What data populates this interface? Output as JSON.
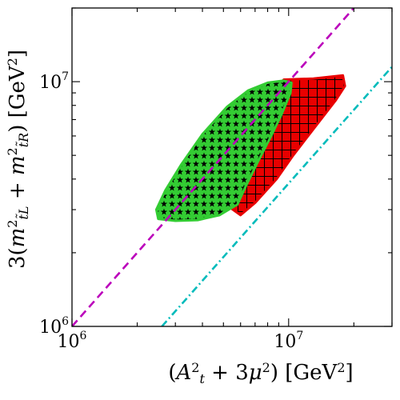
{
  "chart_data": {
    "type": "scatter",
    "title": "",
    "xlabel": {
      "parts": [
        {
          "t": "(",
          "s": "n"
        },
        {
          "t": "A",
          "s": "i"
        },
        {
          "t": "2",
          "s": "sup"
        },
        {
          "t": "t",
          "s": "sub"
        },
        {
          "t": " + 3",
          "s": "n"
        },
        {
          "t": "μ",
          "s": "i"
        },
        {
          "t": "2",
          "s": "sup"
        },
        {
          "t": ") [GeV",
          "s": "n"
        },
        {
          "t": "2",
          "s": "sup"
        },
        {
          "t": "]",
          "s": "n"
        }
      ]
    },
    "ylabel": {
      "parts": [
        {
          "t": "3(",
          "s": "n"
        },
        {
          "t": "m",
          "s": "i"
        },
        {
          "t": "2",
          "s": "sup"
        },
        {
          "t": "t̃L",
          "s": "sub"
        },
        {
          "t": " + ",
          "s": "n"
        },
        {
          "t": "m",
          "s": "i"
        },
        {
          "t": "2",
          "s": "sup"
        },
        {
          "t": "t̃R",
          "s": "sub"
        },
        {
          "t": ") [GeV",
          "s": "n"
        },
        {
          "t": "2",
          "s": "sup"
        },
        {
          "t": "]",
          "s": "n"
        }
      ]
    },
    "x_scale": "log",
    "y_scale": "log",
    "xlim": [
      1000000,
      30000000
    ],
    "ylim": [
      1000000,
      20000000
    ],
    "x_major_ticks": [
      {
        "value": 1000000,
        "base": "10",
        "exp": "6"
      },
      {
        "value": 10000000,
        "base": "10",
        "exp": "7"
      }
    ],
    "y_major_ticks": [
      {
        "value": 1000000,
        "base": "10",
        "exp": "6"
      },
      {
        "value": 10000000,
        "base": "10",
        "exp": "7"
      }
    ],
    "grid": false,
    "legend": "none",
    "series": [
      {
        "kind": "region",
        "marker": "hatched-square",
        "color": "#e80000",
        "x": [
          6000000,
          5000000,
          4600000,
          5300000,
          6500000,
          9500000,
          13000000,
          17800000,
          18200000,
          16500000,
          13000000,
          10500000,
          8800000,
          7000000,
          6000000
        ],
        "y": [
          2850000,
          3200000,
          3700000,
          5500000,
          7600000,
          10200000,
          10300000,
          10600000,
          9600000,
          8400000,
          6400000,
          5000000,
          4000000,
          3200000,
          2850000
        ]
      },
      {
        "kind": "region",
        "marker": "star",
        "color": "#33cc33",
        "x": [
          2500000,
          2450000,
          2700000,
          3200000,
          4000000,
          5200000,
          6500000,
          8000000,
          9500000,
          10300000,
          10200000,
          9300000,
          8300000,
          7200000,
          6300000,
          5800000,
          4800000,
          3800000,
          3000000,
          2500000
        ],
        "y": [
          2750000,
          3000000,
          3600000,
          4600000,
          6100000,
          7900000,
          9200000,
          9900000,
          10100000,
          9900000,
          9000000,
          7400000,
          6000000,
          4700000,
          3700000,
          3150000,
          2850000,
          2720000,
          2700000,
          2750000
        ]
      },
      {
        "kind": "line",
        "style": "dashed",
        "color": "#bb00bb",
        "x": [
          1000000,
          20000000
        ],
        "y": [
          1000000,
          20000000
        ]
      },
      {
        "kind": "line",
        "style": "dashdot",
        "color": "#00bbbb",
        "x": [
          2600000,
          30000000
        ],
        "y": [
          1000000,
          11500000
        ]
      }
    ]
  }
}
